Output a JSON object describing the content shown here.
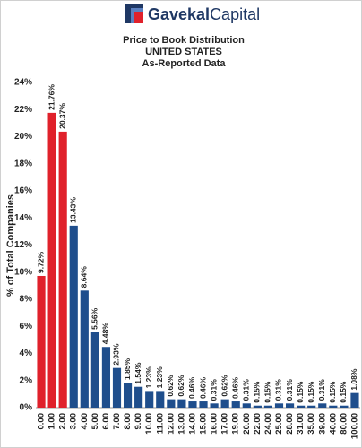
{
  "logo": [
    "Gavekal",
    "Capital"
  ],
  "chart_data": {
    "type": "bar",
    "title": "Price to Book Distribution",
    "subtitle": [
      "UNITED STATES",
      "As-Reported Data"
    ],
    "y_label": "% of Total Companies",
    "categories": [
      "0.00",
      "1.00",
      "2.00",
      "3.00",
      "4.00",
      "5.00",
      "6.00",
      "7.00",
      "8.00",
      "9.00",
      "10.00",
      "11.00",
      "12.00",
      "13.00",
      "14.00",
      "15.00",
      "16.00",
      "17.00",
      "19.00",
      "20.00",
      "22.00",
      "24.00",
      "25.00",
      "28.00",
      "31.00",
      "35.00",
      "39.00",
      "40.00",
      "80.00",
      "100.00"
    ],
    "values": [
      9.72,
      21.76,
      20.37,
      13.43,
      8.64,
      5.56,
      4.48,
      2.93,
      1.85,
      1.54,
      1.23,
      1.23,
      0.62,
      0.62,
      0.46,
      0.46,
      0.31,
      0.62,
      0.46,
      0.31,
      0.15,
      0.15,
      0.31,
      0.31,
      0.15,
      0.15,
      0.31,
      0.15,
      0.15,
      1.08
    ],
    "value_labels": [
      "9.72%",
      "21.76%",
      "20.37%",
      "13.43%",
      "8.64%",
      "5.56%",
      "4.48%",
      "2.93%",
      "1.85%",
      "1.54%",
      "1.23%",
      "1.23%",
      "0.62%",
      "0.62%",
      "0.46%",
      "0.46%",
      "0.31%",
      "0.62%",
      "0.46%",
      "0.31%",
      "0.15%",
      "0.15%",
      "0.31%",
      "0.31%",
      "0.15%",
      "0.15%",
      "0.31%",
      "0.15%",
      "0.15%",
      "1.08%"
    ],
    "colors": [
      "#e0212b",
      "#e0212b",
      "#e0212b",
      "#1f4e8c",
      "#1f4e8c",
      "#1f4e8c",
      "#1f4e8c",
      "#1f4e8c",
      "#1f4e8c",
      "#1f4e8c",
      "#1f4e8c",
      "#1f4e8c",
      "#1f4e8c",
      "#1f4e8c",
      "#1f4e8c",
      "#1f4e8c",
      "#1f4e8c",
      "#1f4e8c",
      "#1f4e8c",
      "#1f4e8c",
      "#1f4e8c",
      "#1f4e8c",
      "#1f4e8c",
      "#1f4e8c",
      "#1f4e8c",
      "#1f4e8c",
      "#1f4e8c",
      "#1f4e8c",
      "#1f4e8c",
      "#1f4e8c"
    ],
    "ylim": [
      0,
      24
    ],
    "yticks": [
      {
        "value": 0,
        "label": "0%"
      },
      {
        "value": 2,
        "label": "2%"
      },
      {
        "value": 4,
        "label": "4%"
      },
      {
        "value": 6,
        "label": "6%"
      },
      {
        "value": 8,
        "label": "8%"
      },
      {
        "value": 10,
        "label": "10%"
      },
      {
        "value": 12,
        "label": "12%"
      },
      {
        "value": 14,
        "label": "14%"
      },
      {
        "value": 16,
        "label": "16%"
      },
      {
        "value": 18,
        "label": "18%"
      },
      {
        "value": 20,
        "label": "20%"
      },
      {
        "value": 22,
        "label": "22%"
      },
      {
        "value": 24,
        "label": "24%"
      }
    ]
  }
}
